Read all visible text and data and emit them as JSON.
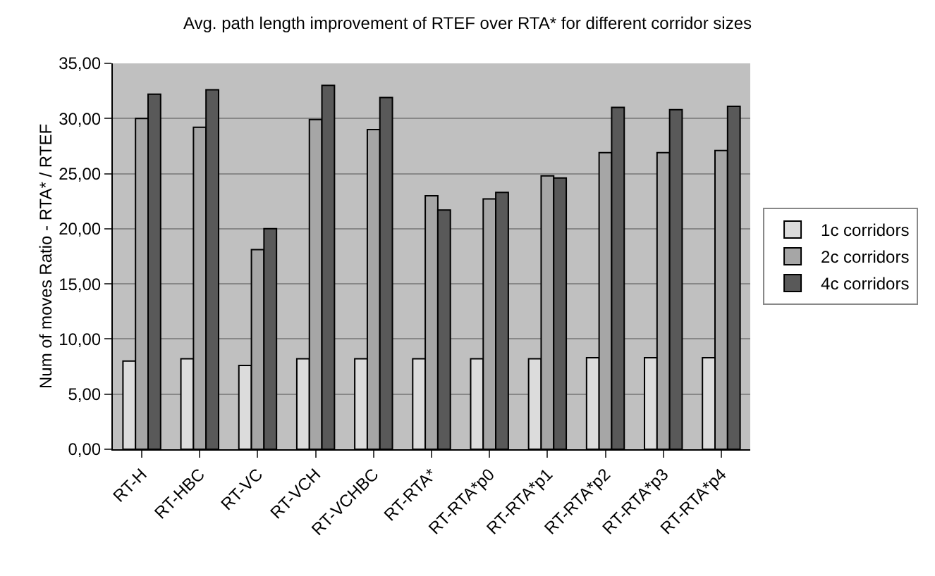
{
  "chart_data": {
    "type": "bar",
    "title": "Avg. path length improvement of RTEF over RTA* for different corridor sizes",
    "ylabel": "Num of moves Ratio - RTA* / RTEF",
    "categories": [
      "RT-H",
      "RT-HBC",
      "RT-VC",
      "RT-VCH",
      "RT-VCHBC",
      "RT-RTA*",
      "RT-RTA*p0",
      "RT-RTA*p1",
      "RT-RTA*p2",
      "RT-RTA*p3",
      "RT-RTA*p4"
    ],
    "series": [
      {
        "name": "1c corridors",
        "color": "#dcdcdc",
        "values": [
          8.0,
          8.2,
          7.6,
          8.2,
          8.2,
          8.2,
          8.2,
          8.2,
          8.3,
          8.3,
          8.3
        ]
      },
      {
        "name": "2c corridors",
        "color": "#a6a6a6",
        "values": [
          30.0,
          29.2,
          18.1,
          29.9,
          29.0,
          23.0,
          22.7,
          24.8,
          26.9,
          26.9,
          27.1
        ]
      },
      {
        "name": "4c corridors",
        "color": "#595959",
        "values": [
          32.2,
          32.6,
          20.0,
          33.0,
          31.9,
          21.7,
          23.3,
          24.6,
          31.0,
          30.8,
          31.1
        ]
      }
    ],
    "ylim": [
      0,
      35
    ],
    "yticks": [
      {
        "value": 0,
        "label": "0,00"
      },
      {
        "value": 5,
        "label": "5,00"
      },
      {
        "value": 10,
        "label": "10,00"
      },
      {
        "value": 15,
        "label": "15,00"
      },
      {
        "value": 20,
        "label": "20,00"
      },
      {
        "value": 25,
        "label": "25,00"
      },
      {
        "value": 30,
        "label": "30,00"
      },
      {
        "value": 35,
        "label": "35,00"
      }
    ],
    "grid": "y",
    "legend": "right"
  }
}
